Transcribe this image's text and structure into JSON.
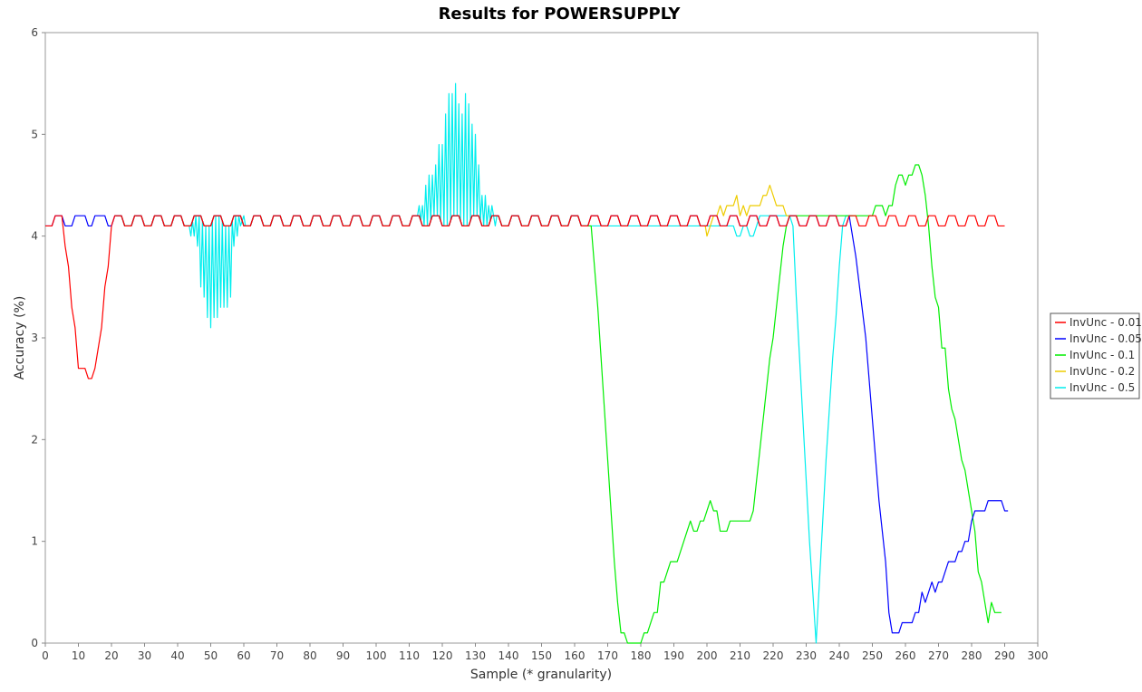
{
  "chart_data": {
    "type": "line",
    "title": "Results for POWERSUPPLY",
    "xlabel": "Sample (* granularity)",
    "ylabel": "Accuracy (%)",
    "xlim": [
      0,
      300
    ],
    "ylim": [
      0,
      6
    ],
    "x_ticks": [
      0,
      10,
      20,
      30,
      40,
      50,
      60,
      70,
      80,
      90,
      100,
      110,
      120,
      130,
      140,
      150,
      160,
      170,
      180,
      190,
      200,
      210,
      220,
      230,
      240,
      250,
      260,
      270,
      280,
      290,
      300
    ],
    "y_ticks": [
      0,
      1,
      2,
      3,
      4,
      5,
      6
    ],
    "grid": false,
    "legend_position": "right",
    "series": [
      {
        "name": "InvUnc - 0.01",
        "color": "#ff0000",
        "points": [
          [
            0,
            4.1
          ],
          [
            2,
            4.1
          ],
          [
            3,
            4.2
          ],
          [
            5,
            4.2
          ],
          [
            6,
            3.9
          ],
          [
            7,
            3.7
          ],
          [
            8,
            3.3
          ],
          [
            9,
            3.1
          ],
          [
            10,
            2.7
          ],
          [
            12,
            2.7
          ],
          [
            13,
            2.6
          ],
          [
            14,
            2.6
          ],
          [
            15,
            2.7
          ],
          [
            16,
            2.9
          ],
          [
            17,
            3.1
          ],
          [
            18,
            3.5
          ],
          [
            19,
            3.7
          ],
          [
            20,
            4.1
          ],
          [
            21,
            4.2
          ]
        ],
        "pattern_from": 21,
        "pattern_to": 290
      },
      {
        "name": "InvUnc - 0.05",
        "color": "#0000ff",
        "points": [
          [
            0,
            4.1
          ],
          [
            2,
            4.1
          ],
          [
            3,
            4.2
          ],
          [
            5,
            4.2
          ],
          [
            6,
            4.1
          ],
          [
            8,
            4.1
          ],
          [
            9,
            4.2
          ],
          [
            12,
            4.2
          ],
          [
            13,
            4.1
          ],
          [
            14,
            4.1
          ],
          [
            15,
            4.2
          ],
          [
            18,
            4.2
          ],
          [
            19,
            4.1
          ],
          [
            20,
            4.1
          ],
          [
            21,
            4.2
          ],
          [
            243,
            4.2
          ],
          [
            245,
            3.8
          ],
          [
            248,
            3.0
          ],
          [
            250,
            2.2
          ],
          [
            252,
            1.4
          ],
          [
            254,
            0.8
          ],
          [
            255,
            0.3
          ],
          [
            256,
            0.1
          ],
          [
            258,
            0.1
          ],
          [
            259,
            0.2
          ],
          [
            262,
            0.2
          ],
          [
            263,
            0.3
          ],
          [
            264,
            0.3
          ],
          [
            265,
            0.5
          ],
          [
            266,
            0.4
          ],
          [
            267,
            0.5
          ],
          [
            268,
            0.6
          ],
          [
            269,
            0.5
          ],
          [
            270,
            0.6
          ],
          [
            271,
            0.6
          ],
          [
            272,
            0.7
          ],
          [
            273,
            0.8
          ],
          [
            275,
            0.8
          ],
          [
            276,
            0.9
          ],
          [
            277,
            0.9
          ],
          [
            278,
            1.0
          ],
          [
            279,
            1.0
          ],
          [
            280,
            1.2
          ],
          [
            281,
            1.3
          ],
          [
            284,
            1.3
          ],
          [
            285,
            1.4
          ],
          [
            289,
            1.4
          ],
          [
            290,
            1.3
          ],
          [
            291,
            1.3
          ]
        ],
        "pattern_from": 21,
        "pattern_to": 243
      },
      {
        "name": "InvUnc - 0.1",
        "color": "#00ee00",
        "points": [
          [
            164,
            4.1
          ],
          [
            165,
            4.1
          ],
          [
            166,
            3.7
          ],
          [
            167,
            3.3
          ],
          [
            168,
            2.8
          ],
          [
            169,
            2.3
          ],
          [
            170,
            1.8
          ],
          [
            171,
            1.3
          ],
          [
            172,
            0.8
          ],
          [
            173,
            0.4
          ],
          [
            174,
            0.1
          ],
          [
            175,
            0.1
          ],
          [
            176,
            0.0
          ],
          [
            180,
            0.0
          ],
          [
            181,
            0.1
          ],
          [
            182,
            0.1
          ],
          [
            183,
            0.2
          ],
          [
            184,
            0.3
          ],
          [
            185,
            0.3
          ],
          [
            186,
            0.6
          ],
          [
            187,
            0.6
          ],
          [
            188,
            0.7
          ],
          [
            189,
            0.8
          ],
          [
            191,
            0.8
          ],
          [
            192,
            0.9
          ],
          [
            193,
            1.0
          ],
          [
            194,
            1.1
          ],
          [
            195,
            1.2
          ],
          [
            196,
            1.1
          ],
          [
            197,
            1.1
          ],
          [
            198,
            1.2
          ],
          [
            199,
            1.2
          ],
          [
            200,
            1.3
          ],
          [
            201,
            1.4
          ],
          [
            202,
            1.3
          ],
          [
            203,
            1.3
          ],
          [
            204,
            1.1
          ],
          [
            206,
            1.1
          ],
          [
            207,
            1.2
          ],
          [
            213,
            1.2
          ],
          [
            214,
            1.3
          ],
          [
            215,
            1.6
          ],
          [
            216,
            1.9
          ],
          [
            217,
            2.2
          ],
          [
            218,
            2.5
          ],
          [
            219,
            2.8
          ],
          [
            220,
            3.0
          ],
          [
            221,
            3.3
          ],
          [
            222,
            3.6
          ],
          [
            223,
            3.9
          ],
          [
            224,
            4.1
          ],
          [
            225,
            4.2
          ],
          [
            250,
            4.2
          ],
          [
            251,
            4.3
          ],
          [
            253,
            4.3
          ],
          [
            254,
            4.2
          ],
          [
            255,
            4.3
          ],
          [
            256,
            4.3
          ],
          [
            257,
            4.5
          ],
          [
            258,
            4.6
          ],
          [
            259,
            4.6
          ],
          [
            260,
            4.5
          ],
          [
            261,
            4.6
          ],
          [
            262,
            4.6
          ],
          [
            263,
            4.7
          ],
          [
            264,
            4.7
          ],
          [
            265,
            4.6
          ],
          [
            266,
            4.4
          ],
          [
            267,
            4.1
          ],
          [
            268,
            3.7
          ],
          [
            269,
            3.4
          ],
          [
            270,
            3.3
          ],
          [
            271,
            2.9
          ],
          [
            272,
            2.9
          ],
          [
            273,
            2.5
          ],
          [
            274,
            2.3
          ],
          [
            275,
            2.2
          ],
          [
            276,
            2.0
          ],
          [
            277,
            1.8
          ],
          [
            278,
            1.7
          ],
          [
            279,
            1.5
          ],
          [
            280,
            1.3
          ],
          [
            281,
            1.1
          ],
          [
            282,
            0.7
          ],
          [
            283,
            0.6
          ],
          [
            284,
            0.4
          ],
          [
            285,
            0.2
          ],
          [
            286,
            0.4
          ],
          [
            287,
            0.3
          ],
          [
            289,
            0.3
          ]
        ],
        "pattern_from": 21,
        "pattern_to": 164
      },
      {
        "name": "InvUnc - 0.2",
        "color": "#eecc00",
        "points": [
          [
            200,
            4.0
          ],
          [
            201,
            4.1
          ],
          [
            202,
            4.2
          ],
          [
            203,
            4.2
          ],
          [
            204,
            4.3
          ],
          [
            205,
            4.2
          ],
          [
            206,
            4.3
          ],
          [
            207,
            4.3
          ],
          [
            208,
            4.3
          ],
          [
            209,
            4.4
          ],
          [
            210,
            4.2
          ],
          [
            211,
            4.3
          ],
          [
            212,
            4.2
          ],
          [
            213,
            4.3
          ],
          [
            214,
            4.3
          ],
          [
            215,
            4.3
          ],
          [
            216,
            4.3
          ],
          [
            217,
            4.4
          ],
          [
            218,
            4.4
          ],
          [
            219,
            4.5
          ],
          [
            220,
            4.4
          ],
          [
            221,
            4.3
          ],
          [
            222,
            4.3
          ],
          [
            223,
            4.3
          ],
          [
            224,
            4.2
          ],
          [
            225,
            4.2
          ]
        ],
        "pattern_from": 21,
        "pattern_to": 200
      },
      {
        "name": "InvUnc - 0.5",
        "color": "#00eeee",
        "points": [
          [
            43,
            4.1
          ],
          [
            44,
            4.0
          ],
          [
            45,
            4.0
          ],
          [
            46,
            3.9
          ],
          [
            47,
            3.5
          ],
          [
            48,
            3.4
          ],
          [
            49,
            3.2
          ],
          [
            50,
            3.1
          ],
          [
            51,
            3.2
          ],
          [
            52,
            3.2
          ],
          [
            53,
            3.3
          ],
          [
            54,
            3.3
          ],
          [
            55,
            3.3
          ],
          [
            56,
            3.4
          ],
          [
            57,
            3.9
          ],
          [
            58,
            4.0
          ],
          [
            59,
            4.1
          ],
          [
            60,
            4.2
          ],
          [
            112,
            4.2
          ],
          [
            113,
            4.3
          ],
          [
            114,
            4.3
          ],
          [
            115,
            4.5
          ],
          [
            116,
            4.6
          ],
          [
            117,
            4.6
          ],
          [
            118,
            4.7
          ],
          [
            119,
            4.9
          ],
          [
            120,
            4.9
          ],
          [
            121,
            5.2
          ],
          [
            122,
            5.4
          ],
          [
            123,
            5.4
          ],
          [
            124,
            5.5
          ],
          [
            125,
            5.3
          ],
          [
            126,
            5.2
          ],
          [
            127,
            5.4
          ],
          [
            128,
            5.3
          ],
          [
            129,
            5.1
          ],
          [
            130,
            5.0
          ],
          [
            131,
            4.7
          ],
          [
            132,
            4.4
          ],
          [
            133,
            4.4
          ],
          [
            134,
            4.3
          ],
          [
            135,
            4.3
          ],
          [
            136,
            4.1
          ],
          [
            208,
            4.1
          ],
          [
            209,
            4.0
          ],
          [
            210,
            4.0
          ],
          [
            211,
            4.1
          ],
          [
            212,
            4.1
          ],
          [
            213,
            4.0
          ],
          [
            214,
            4.0
          ],
          [
            215,
            4.1
          ],
          [
            216,
            4.2
          ],
          [
            225,
            4.2
          ],
          [
            226,
            4.1
          ],
          [
            227,
            3.4
          ],
          [
            228,
            2.8
          ],
          [
            229,
            2.2
          ],
          [
            230,
            1.6
          ],
          [
            231,
            1.0
          ],
          [
            232,
            0.5
          ],
          [
            233,
            0.0
          ],
          [
            234,
            0.6
          ],
          [
            235,
            1.2
          ],
          [
            236,
            1.8
          ],
          [
            237,
            2.3
          ],
          [
            238,
            2.8
          ],
          [
            239,
            3.2
          ],
          [
            240,
            3.7
          ],
          [
            241,
            4.1
          ],
          [
            242,
            4.2
          ],
          [
            244,
            4.2
          ]
        ],
        "pattern_from": 21,
        "pattern_to": 164
      }
    ]
  }
}
